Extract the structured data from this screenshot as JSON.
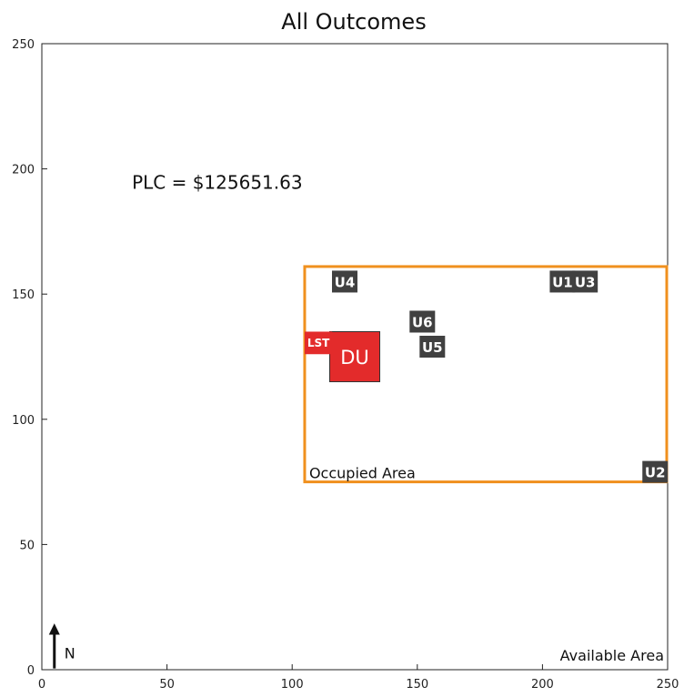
{
  "chart_data": {
    "type": "scatter",
    "title": "All Outcomes",
    "xlim": [
      0,
      250
    ],
    "ylim": [
      0,
      250
    ],
    "xticks": [
      0,
      50,
      100,
      150,
      200,
      250
    ],
    "yticks": [
      0,
      50,
      100,
      150,
      200,
      250
    ],
    "xtick_labels": [
      "0",
      "50",
      "100",
      "150",
      "200",
      "250"
    ],
    "ytick_labels": [
      "0",
      "50",
      "100",
      "150",
      "200",
      "250"
    ],
    "grid": false,
    "annotation": "PLC = $125651.63",
    "occupied_area": {
      "label": "Occupied Area",
      "x": [
        105,
        250
      ],
      "y": [
        75,
        161
      ],
      "color": "#f0901e"
    },
    "available_area_label": "Available Area",
    "north_label": "N",
    "units": [
      {
        "label": "U4",
        "x": 121,
        "y": 155
      },
      {
        "label": "U1",
        "x": 208,
        "y": 155
      },
      {
        "label": "U3",
        "x": 217,
        "y": 155
      },
      {
        "label": "U6",
        "x": 152,
        "y": 139
      },
      {
        "label": "U5",
        "x": 156,
        "y": 129
      },
      {
        "label": "U2",
        "x": 245,
        "y": 79
      }
    ],
    "unit_color": "#404040",
    "du": {
      "label": "DU",
      "x": [
        115,
        135
      ],
      "y": [
        115,
        135
      ],
      "color": "#e32b2b"
    },
    "lst": {
      "label": "LST",
      "x": [
        105,
        116
      ],
      "y": [
        126,
        135
      ],
      "color": "#e32b2b"
    }
  }
}
